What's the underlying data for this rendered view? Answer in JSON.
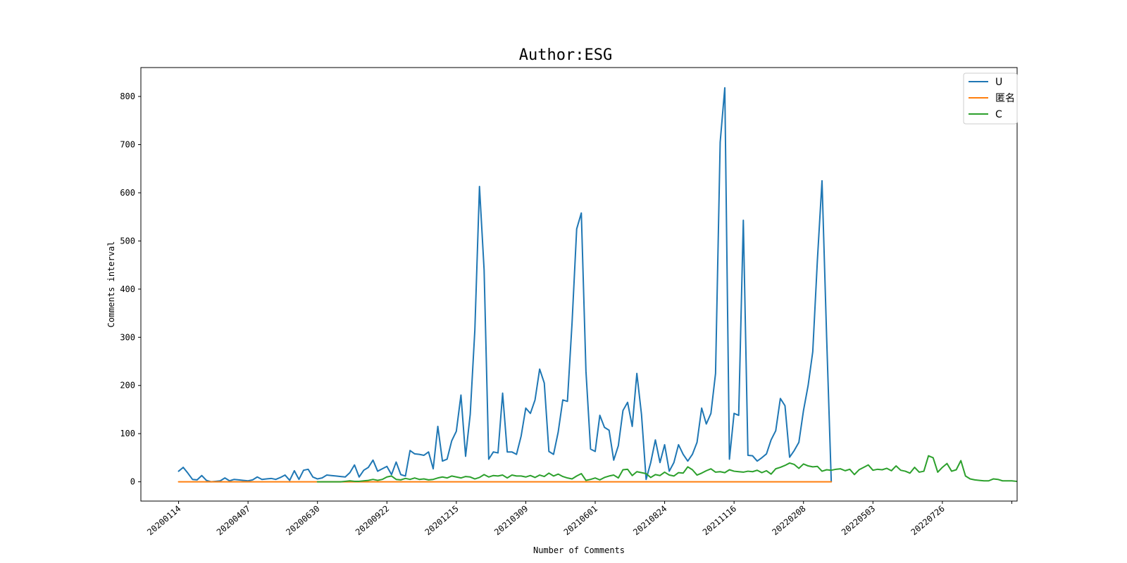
{
  "chart_data": {
    "type": "line",
    "title": "Author:ESG",
    "xlabel": "Number of Comments",
    "ylabel": "Comments interval",
    "xlim": [
      -8.15,
      181.15
    ],
    "ylim": [
      -40,
      860
    ],
    "yticks": [
      0,
      100,
      200,
      300,
      400,
      500,
      600,
      700,
      800
    ],
    "xticks": [
      {
        "x": 0,
        "label": "20200114"
      },
      {
        "x": 15,
        "label": "20200407"
      },
      {
        "x": 30,
        "label": "20200630"
      },
      {
        "x": 45,
        "label": "20200922"
      },
      {
        "x": 60,
        "label": "20201215"
      },
      {
        "x": 75,
        "label": "20210309"
      },
      {
        "x": 90,
        "label": "20210601"
      },
      {
        "x": 105,
        "label": "20210824"
      },
      {
        "x": 120,
        "label": "20211116"
      },
      {
        "x": 135,
        "label": "20220208"
      },
      {
        "x": 150,
        "label": "20220503"
      },
      {
        "x": 165,
        "label": "20220726"
      },
      {
        "x": 180,
        "label": ""
      }
    ],
    "legend_position": "top-right",
    "grid": false,
    "series": [
      {
        "name": "U",
        "color": "#1f77b4",
        "values": [
          22,
          30,
          18,
          5,
          4,
          13,
          3,
          0,
          1,
          2,
          8,
          2,
          5,
          4,
          3,
          2,
          4,
          10,
          5,
          6,
          7,
          5,
          9,
          14,
          3,
          23,
          5,
          24,
          26,
          10,
          6,
          8,
          14,
          13,
          12,
          11,
          10,
          19,
          35,
          10,
          24,
          30,
          45,
          22,
          27,
          32,
          15,
          41,
          15,
          12,
          65,
          58,
          57,
          55,
          62,
          27,
          115,
          43,
          47,
          85,
          105,
          180,
          53,
          140,
          315,
          613,
          440,
          47,
          62,
          60,
          184,
          62,
          62,
          57,
          95,
          153,
          142,
          170,
          234,
          205,
          63,
          57,
          103,
          170,
          167,
          330,
          525,
          558,
          230,
          68,
          63,
          138,
          113,
          107,
          45,
          75,
          148,
          165,
          115,
          225,
          140,
          5,
          40,
          87,
          40,
          77,
          22,
          40,
          77,
          57,
          43,
          57,
          82,
          153,
          120,
          142,
          225,
          705,
          818,
          47,
          142,
          138,
          543,
          55,
          54,
          43,
          50,
          58,
          87,
          106,
          173,
          158,
          51,
          65,
          82,
          148,
          200,
          270,
          460,
          625,
          300,
          0
        ],
        "x_start": 0
      },
      {
        "name": "匿名",
        "color": "#ff7f0e",
        "values": [
          0,
          0,
          0,
          0,
          0,
          0,
          0,
          0,
          0,
          0,
          0,
          0,
          0,
          0,
          0,
          0,
          0,
          0,
          0,
          0,
          0,
          0,
          0,
          0,
          0,
          0,
          0,
          0,
          0,
          0,
          0,
          0,
          0,
          0,
          0,
          0,
          0,
          0,
          0,
          0,
          0,
          0,
          0,
          0,
          0,
          0,
          0,
          0,
          0,
          0,
          0,
          0,
          0,
          0,
          0,
          0,
          0,
          0,
          0,
          0,
          0,
          0,
          0,
          0,
          0,
          0,
          0,
          0,
          0,
          0,
          0,
          0,
          0,
          0,
          0,
          0,
          0,
          0,
          0,
          0,
          0,
          0,
          0,
          0,
          0,
          0,
          0,
          0,
          0,
          0,
          0,
          0,
          0,
          0,
          0,
          0,
          0,
          0,
          0,
          0,
          0,
          0,
          0,
          0,
          0,
          0,
          0,
          0,
          0,
          0,
          0,
          0,
          0,
          0,
          0,
          0,
          0,
          0,
          0,
          0,
          0,
          0,
          0,
          0,
          0,
          0,
          0,
          0,
          0,
          0,
          0,
          0,
          0,
          0,
          0,
          0,
          0,
          0,
          0,
          0,
          0,
          0
        ],
        "x_start": 0
      },
      {
        "name": "C",
        "color": "#2ca02c",
        "values": [
          0,
          0,
          0,
          0,
          0,
          0,
          1,
          2,
          1,
          1,
          2,
          3,
          5,
          3,
          5,
          10,
          12,
          5,
          4,
          7,
          5,
          8,
          5,
          6,
          4,
          5,
          8,
          10,
          8,
          12,
          10,
          8,
          11,
          10,
          6,
          9,
          15,
          10,
          13,
          12,
          14,
          8,
          14,
          12,
          12,
          10,
          13,
          9,
          14,
          11,
          18,
          12,
          16,
          11,
          8,
          6,
          12,
          17,
          3,
          5,
          8,
          4,
          9,
          12,
          14,
          8,
          25,
          26,
          13,
          21,
          19,
          17,
          9,
          15,
          13,
          20,
          14,
          12,
          19,
          18,
          31,
          25,
          14,
          18,
          23,
          27,
          20,
          21,
          19,
          25,
          22,
          21,
          20,
          22,
          21,
          24,
          19,
          23,
          16,
          27,
          30,
          34,
          39,
          36,
          28,
          37,
          33,
          31,
          32,
          22,
          25,
          24,
          26,
          27,
          23,
          26,
          15,
          25,
          30,
          35,
          24,
          26,
          25,
          28,
          23,
          33,
          24,
          22,
          18,
          30,
          20,
          22,
          54,
          50,
          20,
          30,
          38,
          22,
          25,
          44,
          12,
          6,
          4,
          3,
          2,
          2,
          6,
          5,
          2,
          2,
          2,
          1
        ],
        "x_start": 30
      }
    ]
  }
}
